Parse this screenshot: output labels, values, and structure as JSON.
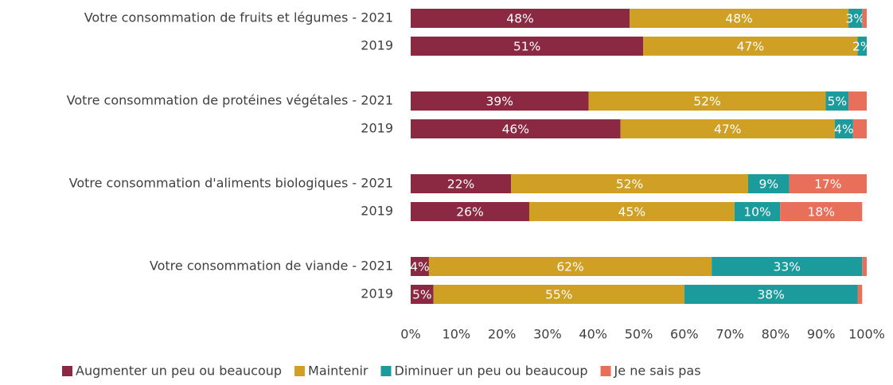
{
  "chart_data": {
    "type": "stacked_barh",
    "categories": [
      "Votre consommation de fruits et légumes - 2021",
      "2019",
      "Votre consommation de protéines végétales - 2021",
      "2019",
      "Votre consommation d'aliments biologiques - 2021",
      "2019",
      "Votre consommation de viande - 2021",
      "2019"
    ],
    "series": [
      {
        "name": "Augmenter un peu ou beaucoup",
        "color": "#8b2942",
        "values": [
          48,
          51,
          39,
          46,
          22,
          26,
          4,
          5
        ],
        "value_labels": [
          "48%",
          "51%",
          "39%",
          "46%",
          "22%",
          "26%",
          "4%",
          "5%"
        ]
      },
      {
        "name": "Maintenir",
        "color": "#d0a024",
        "values": [
          48,
          47,
          52,
          47,
          52,
          45,
          62,
          55
        ],
        "value_labels": [
          "48%",
          "47%",
          "52%",
          "47%",
          "52%",
          "45%",
          "62%",
          "55%"
        ]
      },
      {
        "name": "Diminuer un peu ou beaucoup",
        "color": "#1c9b9d",
        "values": [
          3,
          2,
          5,
          4,
          9,
          10,
          33,
          38
        ],
        "value_labels": [
          "3%",
          "2%",
          "5%",
          "4%",
          "9%",
          "10%",
          "33%",
          "38%"
        ]
      },
      {
        "name": "Je ne sais pas",
        "color": "#e8705a",
        "values": [
          1,
          0,
          4,
          3,
          17,
          18,
          1,
          1
        ],
        "value_labels": [
          null,
          null,
          null,
          null,
          "17%",
          "18%",
          null,
          null
        ]
      }
    ],
    "xlim": [
      0,
      100
    ],
    "xticks": [
      {
        "value": 0,
        "label": "0%"
      },
      {
        "value": 10,
        "label": "10%"
      },
      {
        "value": 20,
        "label": "20%"
      },
      {
        "value": 30,
        "label": "30%"
      },
      {
        "value": 40,
        "label": "40%"
      },
      {
        "value": 50,
        "label": "50%"
      },
      {
        "value": 60,
        "label": "60%"
      },
      {
        "value": 70,
        "label": "70%"
      },
      {
        "value": 80,
        "label": "80%"
      },
      {
        "value": 90,
        "label": "90%"
      },
      {
        "value": 100,
        "label": "100%"
      }
    ],
    "legend": "bottom"
  }
}
